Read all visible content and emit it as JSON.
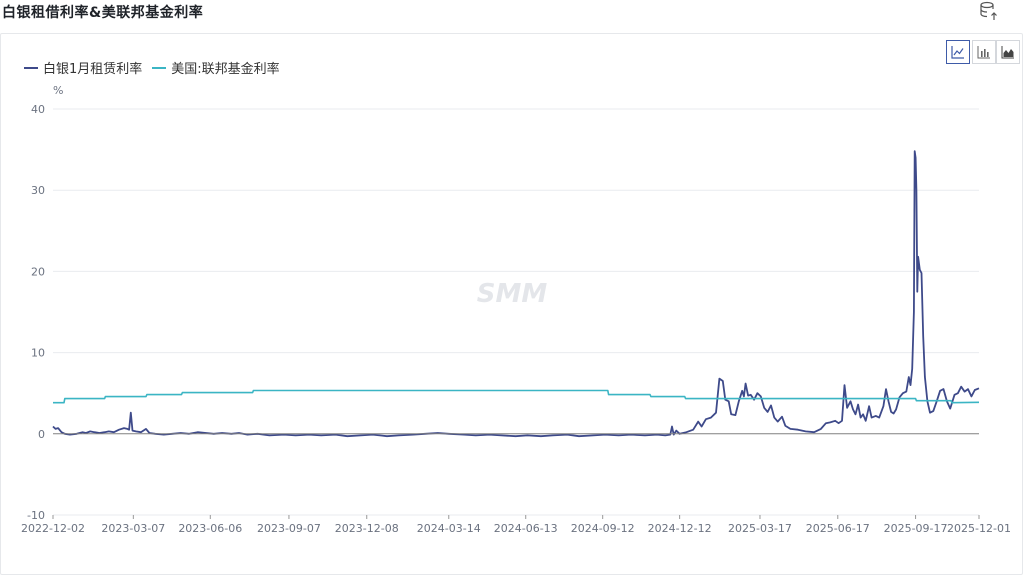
{
  "header": {
    "title": "白银租借利率&美联邦基金利率",
    "export_icon": "database-export-icon"
  },
  "toolbar": {
    "chart_types": [
      {
        "icon": "line-chart-icon",
        "active": true
      },
      {
        "icon": "bar-chart-icon",
        "active": false
      },
      {
        "icon": "area-chart-icon",
        "active": false
      }
    ]
  },
  "watermark": "SMM",
  "colors": {
    "silver_lease": "#3e4a8a",
    "fed_funds": "#3bb5c4",
    "grid": "#e9ebef",
    "zero_line": "#808080"
  },
  "chart_data": {
    "type": "line",
    "title": "白银租借利率&美联邦基金利率",
    "ylabel": "%",
    "ylim": [
      -10,
      40
    ],
    "yticks": [
      -10,
      0,
      10,
      20,
      30,
      40
    ],
    "xlim": [
      "2022-12-02",
      "2025-12-01"
    ],
    "xticks": [
      "2022-12-02",
      "2023-03-07",
      "2023-06-06",
      "2023-09-07",
      "2023-12-08",
      "2024-03-14",
      "2024-06-13",
      "2024-09-12",
      "2024-12-12",
      "2025-03-17",
      "2025-06-17",
      "2025-09-17",
      "2025-12-01"
    ],
    "grid": true,
    "legend_position": "top-left",
    "series": [
      {
        "name": "白银1月租赁利率",
        "color": "#3e4a8a",
        "points": [
          [
            "2022-12-02",
            0.9
          ],
          [
            "2022-12-05",
            0.6
          ],
          [
            "2022-12-08",
            0.7
          ],
          [
            "2022-12-12",
            0.2
          ],
          [
            "2022-12-16",
            0.0
          ],
          [
            "2022-12-22",
            -0.1
          ],
          [
            "2022-12-30",
            0.0
          ],
          [
            "2023-01-06",
            0.2
          ],
          [
            "2023-01-10",
            0.1
          ],
          [
            "2023-01-15",
            0.3
          ],
          [
            "2023-01-20",
            0.2
          ],
          [
            "2023-01-26",
            0.1
          ],
          [
            "2023-02-01",
            0.2
          ],
          [
            "2023-02-06",
            0.3
          ],
          [
            "2023-02-12",
            0.2
          ],
          [
            "2023-02-18",
            0.5
          ],
          [
            "2023-02-24",
            0.7
          ],
          [
            "2023-02-28",
            0.6
          ],
          [
            "2023-03-02",
            0.5
          ],
          [
            "2023-03-04",
            2.6
          ],
          [
            "2023-03-06",
            0.4
          ],
          [
            "2023-03-10",
            0.3
          ],
          [
            "2023-03-16",
            0.2
          ],
          [
            "2023-03-22",
            0.6
          ],
          [
            "2023-03-26",
            0.1
          ],
          [
            "2023-04-02",
            0.0
          ],
          [
            "2023-04-12",
            -0.1
          ],
          [
            "2023-04-22",
            0.0
          ],
          [
            "2023-05-02",
            0.1
          ],
          [
            "2023-05-12",
            0.0
          ],
          [
            "2023-05-22",
            0.2
          ],
          [
            "2023-06-01",
            0.1
          ],
          [
            "2023-06-10",
            0.0
          ],
          [
            "2023-06-20",
            0.1
          ],
          [
            "2023-07-01",
            0.0
          ],
          [
            "2023-07-10",
            0.1
          ],
          [
            "2023-07-20",
            -0.1
          ],
          [
            "2023-08-01",
            0.0
          ],
          [
            "2023-08-15",
            -0.2
          ],
          [
            "2023-09-01",
            -0.1
          ],
          [
            "2023-09-15",
            -0.2
          ],
          [
            "2023-10-01",
            -0.1
          ],
          [
            "2023-10-15",
            -0.2
          ],
          [
            "2023-11-01",
            -0.1
          ],
          [
            "2023-11-15",
            -0.3
          ],
          [
            "2023-12-01",
            -0.2
          ],
          [
            "2023-12-15",
            -0.1
          ],
          [
            "2024-01-01",
            -0.3
          ],
          [
            "2024-01-15",
            -0.2
          ],
          [
            "2024-02-01",
            -0.1
          ],
          [
            "2024-02-15",
            0.0
          ],
          [
            "2024-03-01",
            0.1
          ],
          [
            "2024-03-14",
            0.0
          ],
          [
            "2024-04-01",
            -0.1
          ],
          [
            "2024-04-15",
            -0.2
          ],
          [
            "2024-05-01",
            -0.1
          ],
          [
            "2024-05-15",
            -0.2
          ],
          [
            "2024-06-01",
            -0.3
          ],
          [
            "2024-06-15",
            -0.2
          ],
          [
            "2024-07-01",
            -0.3
          ],
          [
            "2024-07-15",
            -0.2
          ],
          [
            "2024-08-01",
            -0.1
          ],
          [
            "2024-08-15",
            -0.3
          ],
          [
            "2024-09-01",
            -0.2
          ],
          [
            "2024-09-15",
            -0.1
          ],
          [
            "2024-10-01",
            -0.2
          ],
          [
            "2024-10-15",
            -0.1
          ],
          [
            "2024-11-01",
            -0.2
          ],
          [
            "2024-11-15",
            -0.1
          ],
          [
            "2024-11-25",
            -0.2
          ],
          [
            "2024-12-01",
            -0.1
          ],
          [
            "2024-12-03",
            0.9
          ],
          [
            "2024-12-05",
            -0.1
          ],
          [
            "2024-12-08",
            0.4
          ],
          [
            "2024-12-12",
            0.0
          ],
          [
            "2024-12-20",
            0.2
          ],
          [
            "2024-12-28",
            0.5
          ],
          [
            "2025-01-03",
            1.5
          ],
          [
            "2025-01-07",
            0.9
          ],
          [
            "2025-01-12",
            1.8
          ],
          [
            "2025-01-18",
            2.0
          ],
          [
            "2025-01-24",
            2.6
          ],
          [
            "2025-01-28",
            6.8
          ],
          [
            "2025-02-01",
            6.5
          ],
          [
            "2025-02-04",
            4.2
          ],
          [
            "2025-02-08",
            4.0
          ],
          [
            "2025-02-11",
            2.4
          ],
          [
            "2025-02-16",
            2.3
          ],
          [
            "2025-02-20",
            4.0
          ],
          [
            "2025-02-24",
            5.3
          ],
          [
            "2025-02-26",
            4.6
          ],
          [
            "2025-02-28",
            6.2
          ],
          [
            "2025-03-03",
            4.7
          ],
          [
            "2025-03-06",
            4.8
          ],
          [
            "2025-03-10",
            4.2
          ],
          [
            "2025-03-14",
            5.0
          ],
          [
            "2025-03-18",
            4.6
          ],
          [
            "2025-03-22",
            3.2
          ],
          [
            "2025-03-26",
            2.7
          ],
          [
            "2025-03-30",
            3.5
          ],
          [
            "2025-04-03",
            2.0
          ],
          [
            "2025-04-07",
            1.5
          ],
          [
            "2025-04-12",
            2.1
          ],
          [
            "2025-04-16",
            1.0
          ],
          [
            "2025-04-22",
            0.6
          ],
          [
            "2025-05-01",
            0.5
          ],
          [
            "2025-05-10",
            0.3
          ],
          [
            "2025-05-20",
            0.2
          ],
          [
            "2025-05-28",
            0.6
          ],
          [
            "2025-06-03",
            1.3
          ],
          [
            "2025-06-08",
            1.4
          ],
          [
            "2025-06-14",
            1.6
          ],
          [
            "2025-06-18",
            1.3
          ],
          [
            "2025-06-22",
            1.6
          ],
          [
            "2025-06-25",
            6.0
          ],
          [
            "2025-06-28",
            3.2
          ],
          [
            "2025-07-02",
            4.0
          ],
          [
            "2025-07-05",
            3.0
          ],
          [
            "2025-07-08",
            2.4
          ],
          [
            "2025-07-11",
            3.6
          ],
          [
            "2025-07-14",
            2.0
          ],
          [
            "2025-07-17",
            2.4
          ],
          [
            "2025-07-20",
            1.6
          ],
          [
            "2025-07-24",
            3.4
          ],
          [
            "2025-07-27",
            2.0
          ],
          [
            "2025-08-01",
            2.2
          ],
          [
            "2025-08-05",
            2.0
          ],
          [
            "2025-08-10",
            3.4
          ],
          [
            "2025-08-13",
            5.5
          ],
          [
            "2025-08-16",
            4.0
          ],
          [
            "2025-08-19",
            2.7
          ],
          [
            "2025-08-22",
            2.5
          ],
          [
            "2025-08-25",
            3.0
          ],
          [
            "2025-08-29",
            4.5
          ],
          [
            "2025-09-02",
            5.0
          ],
          [
            "2025-09-06",
            5.2
          ],
          [
            "2025-09-09",
            7.0
          ],
          [
            "2025-09-11",
            6.0
          ],
          [
            "2025-09-13",
            8.0
          ],
          [
            "2025-09-15",
            15.0
          ],
          [
            "2025-09-16",
            34.8
          ],
          [
            "2025-09-17",
            34.0
          ],
          [
            "2025-09-18",
            30.0
          ],
          [
            "2025-09-19",
            17.5
          ],
          [
            "2025-09-20",
            21.8
          ],
          [
            "2025-09-22",
            20.2
          ],
          [
            "2025-09-24",
            19.8
          ],
          [
            "2025-09-26",
            12.0
          ],
          [
            "2025-09-28",
            7.0
          ],
          [
            "2025-10-01",
            4.0
          ],
          [
            "2025-10-04",
            2.6
          ],
          [
            "2025-10-08",
            2.8
          ],
          [
            "2025-10-12",
            4.0
          ],
          [
            "2025-10-16",
            5.3
          ],
          [
            "2025-10-20",
            5.5
          ],
          [
            "2025-10-24",
            4.0
          ],
          [
            "2025-10-28",
            3.1
          ],
          [
            "2025-11-02",
            4.8
          ],
          [
            "2025-11-06",
            5.0
          ],
          [
            "2025-11-10",
            5.8
          ],
          [
            "2025-11-14",
            5.2
          ],
          [
            "2025-11-18",
            5.5
          ],
          [
            "2025-11-22",
            4.6
          ],
          [
            "2025-11-26",
            5.4
          ],
          [
            "2025-12-01",
            5.6
          ]
        ]
      },
      {
        "name": "美国:联邦基金利率",
        "color": "#3bb5c4",
        "points": [
          [
            "2022-12-02",
            3.83
          ],
          [
            "2022-12-15",
            3.83
          ],
          [
            "2022-12-16",
            4.33
          ],
          [
            "2023-02-01",
            4.33
          ],
          [
            "2023-02-02",
            4.58
          ],
          [
            "2023-03-22",
            4.58
          ],
          [
            "2023-03-23",
            4.83
          ],
          [
            "2023-05-03",
            4.83
          ],
          [
            "2023-05-04",
            5.08
          ],
          [
            "2023-07-26",
            5.08
          ],
          [
            "2023-07-27",
            5.33
          ],
          [
            "2024-09-18",
            5.33
          ],
          [
            "2024-09-19",
            4.83
          ],
          [
            "2024-11-07",
            4.83
          ],
          [
            "2024-11-08",
            4.58
          ],
          [
            "2024-12-18",
            4.58
          ],
          [
            "2024-12-19",
            4.33
          ],
          [
            "2025-09-17",
            4.33
          ],
          [
            "2025-09-18",
            4.08
          ],
          [
            "2025-10-29",
            4.08
          ],
          [
            "2025-10-30",
            3.83
          ],
          [
            "2025-12-01",
            3.88
          ]
        ]
      }
    ]
  }
}
